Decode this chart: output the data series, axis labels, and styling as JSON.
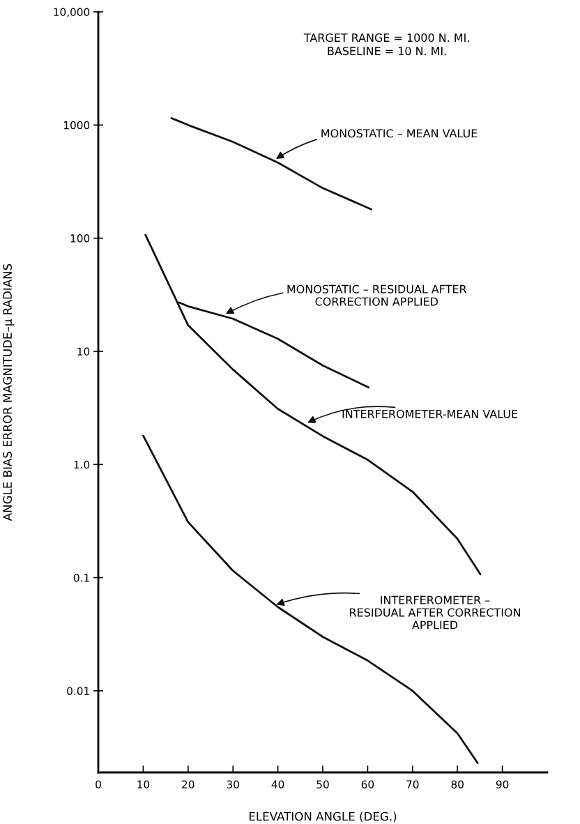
{
  "chart_data": {
    "type": "line",
    "xlabel": "ELEVATION ANGLE (DEG.)",
    "ylabel": "ANGLE BIAS ERROR MAGNITUDE–μ RADIANS",
    "log": "y",
    "xlim": [
      0,
      100
    ],
    "xticks": [
      0,
      10,
      20,
      30,
      40,
      50,
      60,
      70,
      80,
      90
    ],
    "ylim": [
      0.0019,
      10000
    ],
    "yticks": [
      {
        "value": 0.01,
        "label": "0.01"
      },
      {
        "value": 0.1,
        "label": "0.1"
      },
      {
        "value": 1,
        "label": "1.0"
      },
      {
        "value": 10,
        "label": "10"
      },
      {
        "value": 100,
        "label": "100"
      },
      {
        "value": 1000,
        "label": "1000"
      },
      {
        "value": 10000,
        "label": "10,000"
      }
    ],
    "grid": false,
    "legend": false,
    "marker": "none",
    "line_style": "solid",
    "series": [
      {
        "color": "#111111",
        "x": [
          16.3,
          20,
          30,
          40,
          50,
          60.8
        ],
        "values": [
          1150,
          1000,
          710,
          465,
          277,
          180
        ]
      },
      {
        "color": "#111111",
        "x": [
          18,
          20,
          30,
          40,
          50,
          60.2
        ],
        "values": [
          27,
          25,
          19.4,
          12.9,
          7.5,
          4.8
        ]
      },
      {
        "color": "#111111",
        "x": [
          10.5,
          20,
          30,
          40,
          50,
          60,
          70,
          80,
          85.1
        ],
        "values": [
          107,
          17,
          6.9,
          3.1,
          1.78,
          1.1,
          0.575,
          0.22,
          0.107
        ]
      },
      {
        "color": "#111111",
        "x": [
          10,
          20,
          30,
          40,
          50,
          60,
          70,
          80,
          84.5
        ],
        "values": [
          1.8,
          0.31,
          0.115,
          0.055,
          0.03,
          0.0185,
          0.01,
          0.0042,
          0.0023
        ]
      }
    ],
    "annotations": [
      "TARGET RANGE = 1000 N. MI.\nBASELINE = 10 N. MI.",
      {
        "text": "MONOSTATIC – MEAN VALUE",
        "x": 39.2,
        "y": 490
      },
      {
        "text": "MONOSTATIC – RESIDUAL AFTER\nCORRECTION APPLIED",
        "x": 28,
        "y": 21
      },
      {
        "text": "INTERFEROMETER-MEAN VALUE",
        "x": 46.2,
        "y": 2.3
      },
      {
        "text": "INTERFEROMETER –\nRESIDUAL AFTER CORRECTION\nAPPLIED",
        "x": 39.2,
        "y": 0.057
      }
    ]
  }
}
